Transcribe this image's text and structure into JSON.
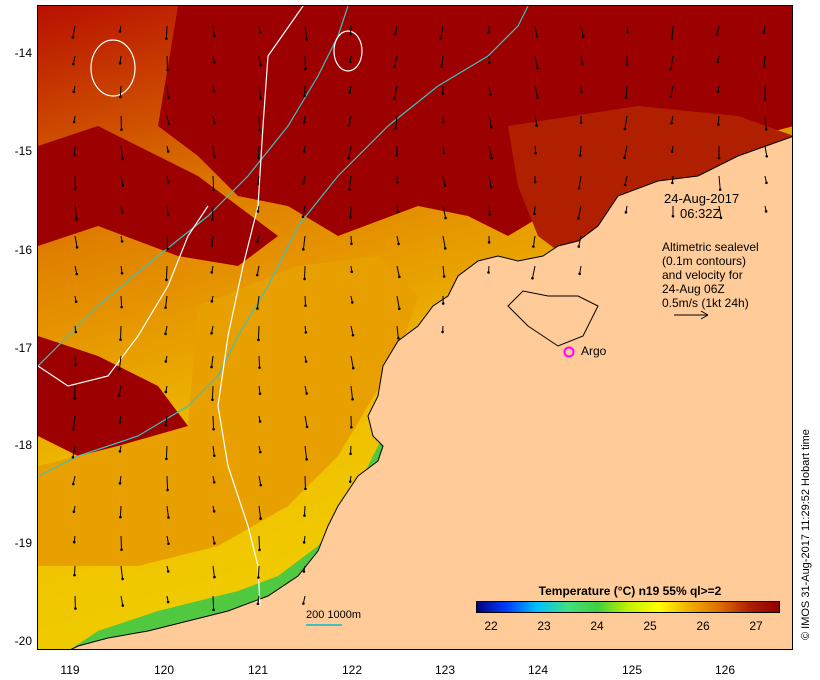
{
  "map": {
    "lat_ticks": [
      "-14",
      "-15",
      "-16",
      "-17",
      "-18",
      "-19",
      "-20"
    ],
    "lon_ticks": [
      "119",
      "120",
      "121",
      "122",
      "123",
      "124",
      "125",
      "126"
    ],
    "lat_range": [
      -20.1,
      -13.6
    ],
    "lon_range": [
      118.65,
      126.7
    ]
  },
  "annotation": {
    "datetime_line1": "24-Aug-2017",
    "datetime_line2": "06:32Z",
    "info_lines": [
      "Altimetric sealevel",
      "(0.1m contours)",
      "and velocity for",
      "24-Aug 06Z",
      "0.5m/s (1kt 24h)"
    ]
  },
  "argo": {
    "label": "Argo",
    "lat": -17.04,
    "lon": 124.3,
    "color": "#ff00ff"
  },
  "colorbar": {
    "title": "Temperature (°C) n19 55% ql>=2",
    "ticks": [
      "22",
      "23",
      "24",
      "25",
      "26",
      "27"
    ],
    "stops": [
      "#000080",
      "#0040ff",
      "#00c0ff",
      "#40e080",
      "#40d040",
      "#c0f000",
      "#ffff00",
      "#f0b000",
      "#e07000",
      "#b02000",
      "#900000"
    ]
  },
  "scale": {
    "label": "200  1000m",
    "color": "#40c0c0"
  },
  "credit": "© IMOS 31-Aug-2017 11:29:52 Hobart time",
  "colors": {
    "land": "#ffcc99",
    "sea_warm": "#a00000",
    "sea_mid": "#e09000",
    "sea_cool": "#60d040",
    "contour": "#ffffff",
    "isobath": "#40c0c0"
  }
}
